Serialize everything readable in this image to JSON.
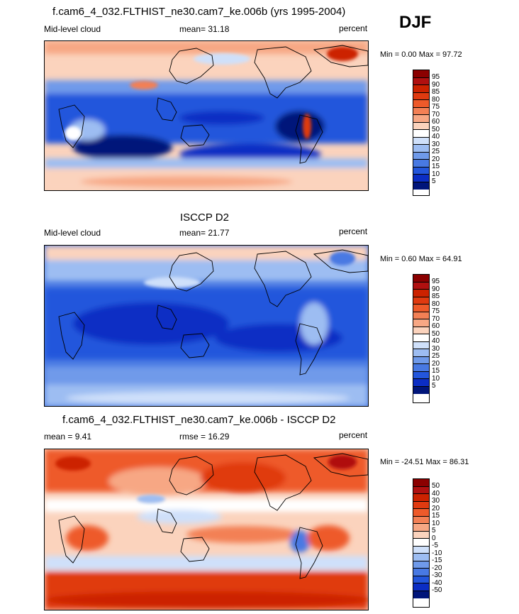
{
  "header": {
    "title": "f.cam6_4_032.FLTHIST_ne30.cam7_ke.006b (yrs 1995-2004)",
    "season": "DJF"
  },
  "panels": [
    {
      "id": "model",
      "title": "",
      "left_label": "Mid-level cloud",
      "center_label": "mean=  31.18",
      "right_label": "percent",
      "minmax": "Min =   0.00 Max =  97.72"
    },
    {
      "id": "obs",
      "title": "ISCCP D2",
      "left_label": "Mid-level cloud",
      "center_label": "mean=  21.77",
      "right_label": "percent",
      "minmax": "Min =   0.60 Max =  64.91"
    },
    {
      "id": "diff",
      "title": "f.cam6_4_032.FLTHIST_ne30.cam7_ke.006b - ISCCP D2",
      "left_label": "mean =   9.41",
      "center_label": "rmse =  16.29",
      "right_label": "percent",
      "minmax": "Min = -24.51 Max =  86.31"
    }
  ],
  "colorbars": {
    "cloud": {
      "labels": [
        "95",
        "90",
        "85",
        "80",
        "75",
        "70",
        "60",
        "50",
        "40",
        "30",
        "25",
        "20",
        "15",
        "10",
        "5"
      ],
      "colors": [
        "#8b0000",
        "#b01010",
        "#cc2200",
        "#e03a10",
        "#ee5a2a",
        "#f38055",
        "#f7a784",
        "#fbd3bd",
        "#ffffff",
        "#cfe0fa",
        "#9dbdf2",
        "#6f9aea",
        "#4879e3",
        "#2356dc",
        "#0b2dc4",
        "#00157a"
      ]
    },
    "diff": {
      "labels": [
        "50",
        "40",
        "30",
        "20",
        "15",
        "10",
        "5",
        "0",
        "-5",
        "-10",
        "-15",
        "-20",
        "-30",
        "-40",
        "-50"
      ],
      "colors": [
        "#8b0000",
        "#b01010",
        "#cc2200",
        "#e03a10",
        "#ee5a2a",
        "#f38055",
        "#f7a784",
        "#fbd3bd",
        "#ffffff",
        "#cfe0fa",
        "#9dbdf2",
        "#6f9aea",
        "#4879e3",
        "#2356dc",
        "#0b2dc4",
        "#00157a"
      ]
    }
  }
}
